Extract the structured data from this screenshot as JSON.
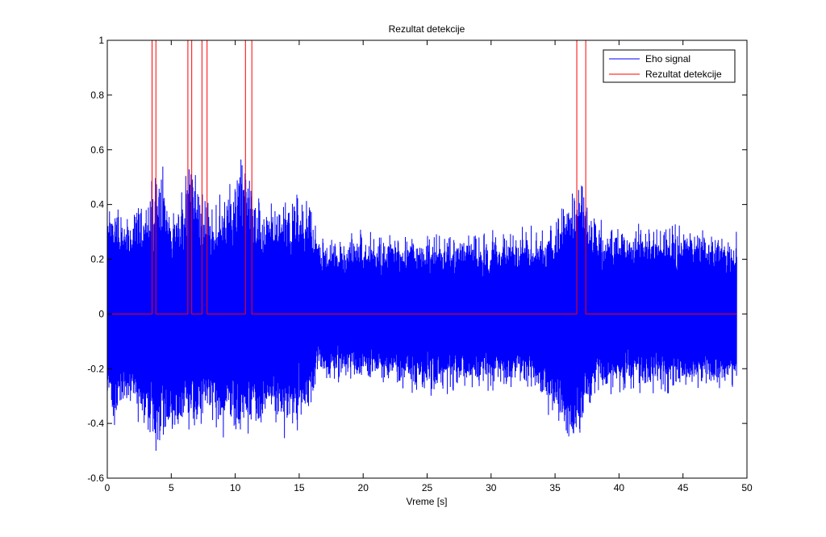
{
  "chart_data": {
    "type": "line",
    "title": "Rezultat detekcije",
    "xlabel": "Vreme [s]",
    "ylabel": "",
    "xlim": [
      0,
      50
    ],
    "ylim": [
      -0.6,
      1
    ],
    "grid": false,
    "legend_position": "top-right",
    "x_ticks": [
      0,
      5,
      10,
      15,
      20,
      25,
      30,
      35,
      40,
      45,
      50
    ],
    "y_ticks": [
      -0.6,
      -0.4,
      -0.2,
      0,
      0.2,
      0.4,
      0.6,
      0.8,
      1
    ],
    "x_tick_labels": [
      "0",
      "5",
      "10",
      "15",
      "20",
      "25",
      "30",
      "35",
      "40",
      "45",
      "50"
    ],
    "y_tick_labels": [
      "-0.6",
      "-0.4",
      "-0.2",
      "0",
      "0.2",
      "0.4",
      "0.6",
      "0.8",
      "1"
    ],
    "series": [
      {
        "name": "Eho signal",
        "color": "#0000ff",
        "envelope": {
          "t": [
            0,
            0.5,
            1,
            2,
            3,
            3.6,
            4,
            5,
            6,
            6.4,
            7,
            7.6,
            8,
            9,
            10,
            10.5,
            11,
            12,
            13,
            14,
            15,
            16,
            16.5,
            17,
            20,
            25,
            30,
            33,
            35,
            36,
            36.8,
            37.2,
            38,
            40,
            45,
            49.2
          ],
          "upper": [
            0.4,
            0.47,
            0.38,
            0.4,
            0.44,
            0.52,
            0.6,
            0.42,
            0.45,
            0.61,
            0.5,
            0.45,
            0.42,
            0.44,
            0.5,
            0.63,
            0.55,
            0.42,
            0.4,
            0.42,
            0.45,
            0.44,
            0.3,
            0.28,
            0.31,
            0.3,
            0.31,
            0.32,
            0.36,
            0.46,
            0.47,
            0.5,
            0.37,
            0.33,
            0.35,
            0.3
          ],
          "lower": [
            -0.32,
            -0.45,
            -0.38,
            -0.37,
            -0.43,
            -0.53,
            -0.5,
            -0.48,
            -0.43,
            -0.48,
            -0.46,
            -0.4,
            -0.4,
            -0.45,
            -0.48,
            -0.5,
            -0.44,
            -0.42,
            -0.42,
            -0.46,
            -0.42,
            -0.36,
            -0.22,
            -0.25,
            -0.25,
            -0.3,
            -0.28,
            -0.28,
            -0.4,
            -0.52,
            -0.51,
            -0.43,
            -0.3,
            -0.29,
            -0.29,
            -0.27
          ]
        }
      },
      {
        "name": "Rezultat detekcije",
        "color": "#ff0000",
        "x": [
          0,
          3.5,
          3.5,
          3.8,
          3.8,
          6.3,
          6.3,
          6.6,
          6.6,
          7.4,
          7.4,
          7.8,
          7.8,
          10.8,
          10.8,
          11.3,
          11.3,
          36.7,
          36.7,
          37.4,
          37.4,
          49.2
        ],
        "y": [
          0,
          0,
          1,
          1,
          0,
          0,
          1,
          1,
          0,
          0,
          1,
          1,
          0,
          0,
          1,
          1,
          0,
          0,
          1,
          1,
          0,
          0
        ]
      }
    ]
  }
}
